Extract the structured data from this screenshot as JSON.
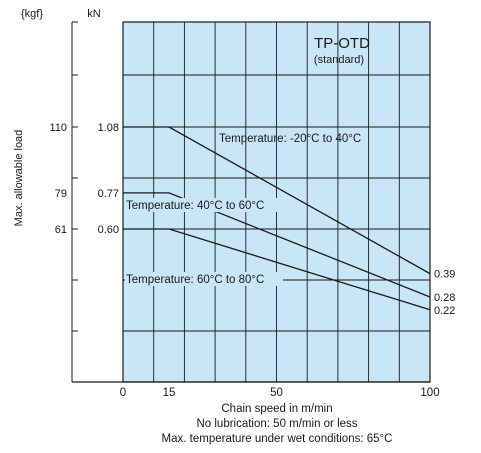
{
  "chart_data": {
    "type": "line",
    "title": "TP-OTD",
    "subtitle": "(standard)",
    "xlabel": "Chain speed in m/min",
    "ylabel": "Max. allowable load",
    "unit_kgf": "{kgf}",
    "unit_kn": "kN",
    "xlim": [
      0,
      100
    ],
    "x_ticks": [
      0,
      15,
      50,
      100
    ],
    "kgf_ticks": [
      "110",
      "79",
      "61"
    ],
    "kn_ticks": [
      "1.08",
      "0.77",
      "0.60"
    ],
    "grid": true,
    "plot_color": "#c8e6f7",
    "series": [
      {
        "name": "Temperature: -20°C to 40°C",
        "x": [
          0,
          15,
          100
        ],
        "y": [
          1.08,
          1.08,
          0.39
        ],
        "end_label": "0.39"
      },
      {
        "name": "Temperature: 40°C to 60°C",
        "x": [
          0,
          15,
          100
        ],
        "y": [
          0.77,
          0.77,
          0.28
        ],
        "end_label": "0.28"
      },
      {
        "name": "Temperature: 60°C to 80°C",
        "x": [
          0,
          15,
          100
        ],
        "y": [
          0.6,
          0.6,
          0.22
        ],
        "end_label": "0.22"
      }
    ]
  },
  "notes": [
    "No lubrication: 50 m/min or less",
    "Max. temperature under wet conditions: 65°C"
  ]
}
